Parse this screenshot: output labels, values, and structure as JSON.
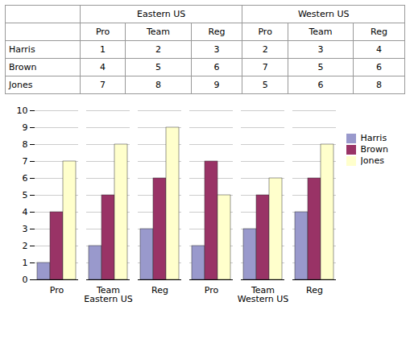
{
  "chart_data": {
    "type": "bar",
    "groups": [
      {
        "name": "Eastern US",
        "categories": [
          "Pro",
          "Team",
          "Reg"
        ]
      },
      {
        "name": "Western US",
        "categories": [
          "Pro",
          "Team",
          "Reg"
        ]
      }
    ],
    "series": [
      {
        "name": "Harris",
        "color": "#9999CC",
        "values": [
          1,
          2,
          3,
          2,
          3,
          4
        ]
      },
      {
        "name": "Brown",
        "color": "#993366",
        "values": [
          4,
          5,
          6,
          7,
          5,
          6
        ]
      },
      {
        "name": "Jones",
        "color": "#FFFFCC",
        "values": [
          7,
          8,
          9,
          5,
          6,
          8
        ]
      }
    ],
    "ylim": [
      0,
      10
    ],
    "yticks": [
      0,
      1,
      2,
      3,
      4,
      5,
      6,
      7,
      8,
      9,
      10
    ],
    "grid": true,
    "legend": "right"
  }
}
